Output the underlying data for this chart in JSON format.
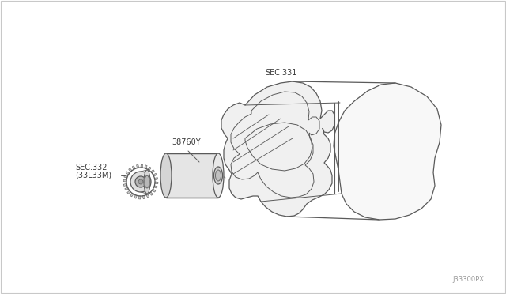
{
  "background_color": "#ffffff",
  "border_color": "#c8c8c8",
  "line_color": "#5a5a5a",
  "text_color": "#3a3a3a",
  "figsize": [
    6.4,
    3.72
  ],
  "dpi": 100,
  "watermark": "J33300PX",
  "label_38760Y": "38760Y",
  "label_sec332": "SEC.332",
  "label_sec332b": "(33L33M)",
  "label_sec331": "SEC.331",
  "font_size": 7.0
}
